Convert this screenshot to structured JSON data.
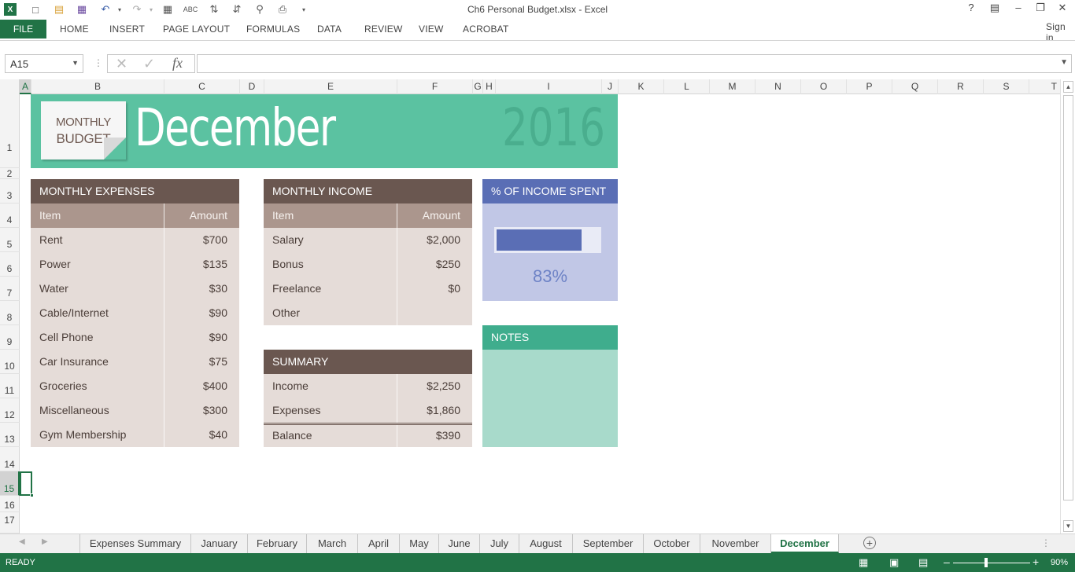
{
  "window": {
    "title": "Ch6 Personal Budget.xlsx - Excel",
    "help": "?",
    "sign_in": "Sign in"
  },
  "ribbon": {
    "tabs": [
      "FILE",
      "HOME",
      "INSERT",
      "PAGE LAYOUT",
      "FORMULAS",
      "DATA",
      "REVIEW",
      "VIEW",
      "ACROBAT"
    ]
  },
  "formula_bar": {
    "name_box": "A15",
    "fx_label": "fx",
    "value": ""
  },
  "columns": [
    "A",
    "B",
    "C",
    "D",
    "E",
    "F",
    "G",
    "H",
    "I",
    "J",
    "K",
    "L",
    "M",
    "N",
    "O",
    "P",
    "Q",
    "R",
    "S",
    "T"
  ],
  "rows": [
    "1",
    "2",
    "3",
    "4",
    "5",
    "6",
    "7",
    "8",
    "9",
    "10",
    "11",
    "12",
    "13",
    "14",
    "15",
    "16",
    "17"
  ],
  "banner": {
    "badge_line1": "MONTHLY",
    "badge_line2": "BUDGET",
    "month": "December",
    "year": "2016"
  },
  "expenses": {
    "title": "MONTHLY EXPENSES",
    "col_item": "Item",
    "col_amount": "Amount",
    "rows": [
      {
        "item": "Rent",
        "amount": "$700"
      },
      {
        "item": "Power",
        "amount": "$135"
      },
      {
        "item": "Water",
        "amount": "$30"
      },
      {
        "item": "Cable/Internet",
        "amount": "$90"
      },
      {
        "item": "Cell Phone",
        "amount": "$90"
      },
      {
        "item": "Car Insurance",
        "amount": "$75"
      },
      {
        "item": "Groceries",
        "amount": "$400"
      },
      {
        "item": "Miscellaneous",
        "amount": "$300"
      },
      {
        "item": "Gym Membership",
        "amount": "$40"
      }
    ]
  },
  "income": {
    "title": "MONTHLY INCOME",
    "col_item": "Item",
    "col_amount": "Amount",
    "rows": [
      {
        "item": "Salary",
        "amount": "$2,000"
      },
      {
        "item": "Bonus",
        "amount": "$250"
      },
      {
        "item": "Freelance",
        "amount": "$0"
      },
      {
        "item": "Other",
        "amount": ""
      }
    ]
  },
  "summary": {
    "title": "SUMMARY",
    "rows": [
      {
        "item": "Income",
        "amount": "$2,250"
      },
      {
        "item": "Expenses",
        "amount": "$1,860"
      },
      {
        "item": "Balance",
        "amount": "$390"
      }
    ]
  },
  "percent_spent": {
    "title": "% OF INCOME SPENT",
    "value_label": "83%",
    "fraction": 0.83
  },
  "notes": {
    "title": "NOTES"
  },
  "sheet_tabs": {
    "tabs": [
      "Expenses Summary",
      "January",
      "February",
      "March",
      "April",
      "May",
      "June",
      "July",
      "August",
      "September",
      "October",
      "November",
      "December"
    ],
    "active": "December"
  },
  "status_bar": {
    "mode": "READY",
    "zoom": "90%"
  },
  "colors": {
    "excel_green": "#217346",
    "banner": "#5bc2a1",
    "table_header": "#6a5750",
    "percent_header": "#5a6eb5",
    "notes_header": "#3fad8d"
  }
}
